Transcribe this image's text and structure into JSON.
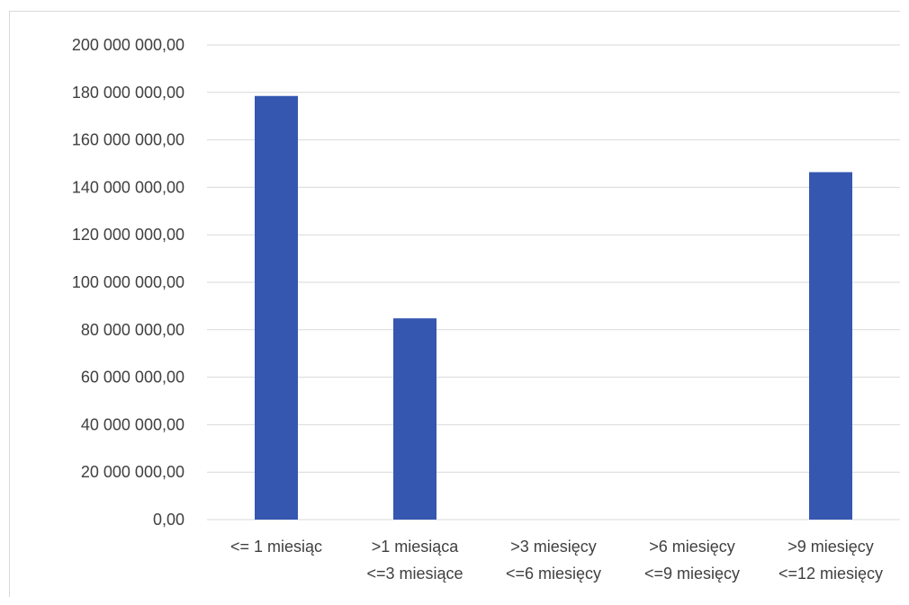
{
  "chart_data": {
    "type": "bar",
    "categories": [
      [
        "<= 1 miesiąc"
      ],
      [
        ">1 miesiąca",
        "<=3 miesiące"
      ],
      [
        ">3 miesięcy",
        "<=6 miesięcy"
      ],
      [
        ">6 miesięcy",
        "<=9 miesięcy"
      ],
      [
        ">9 miesięcy",
        "<=12 miesięcy"
      ]
    ],
    "values": [
      178500000,
      84800000,
      0,
      0,
      146400000
    ],
    "ylim": [
      0,
      200000000
    ],
    "yticks": [
      "0,00",
      "20 000 000,00",
      "40 000 000,00",
      "60 000 000,00",
      "80 000 000,00",
      "100 000 000,00",
      "120 000 000,00",
      "140 000 000,00",
      "160 000 000,00",
      "180 000 000,00",
      "200 000 000,00"
    ],
    "grid": true,
    "legend": "none",
    "bar_color": "#3557b0"
  }
}
